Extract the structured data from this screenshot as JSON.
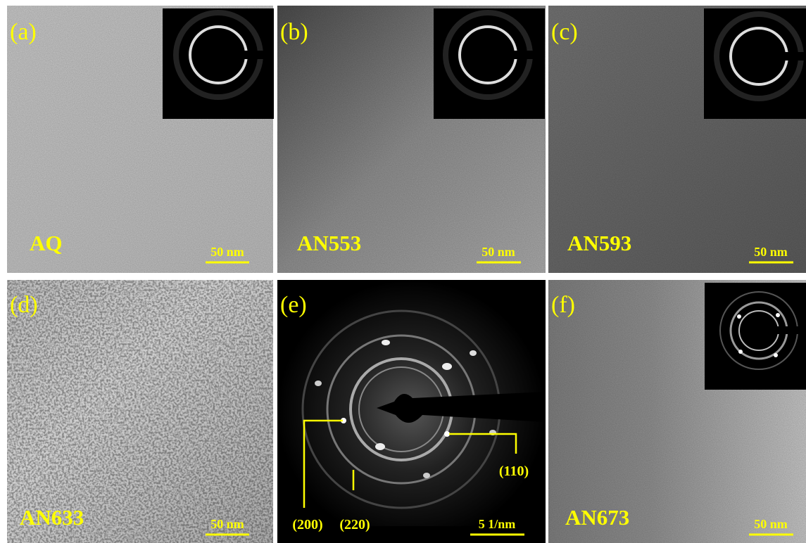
{
  "panels": [
    {
      "label": "(a)",
      "sample": "AQ",
      "scale": "50 nm"
    },
    {
      "label": "(b)",
      "sample": "AN553",
      "scale": "50 nm"
    },
    {
      "label": "(c)",
      "sample": "AN593",
      "scale": "50 nm"
    },
    {
      "label": "(d)",
      "sample": "AN633",
      "scale": "50 nm"
    },
    {
      "label": "(e)",
      "scale": "5 1/nm",
      "indices": [
        "(200)",
        "(220)",
        "(110)"
      ]
    },
    {
      "label": "(f)",
      "sample": "AN673",
      "scale": "50 nm"
    }
  ]
}
